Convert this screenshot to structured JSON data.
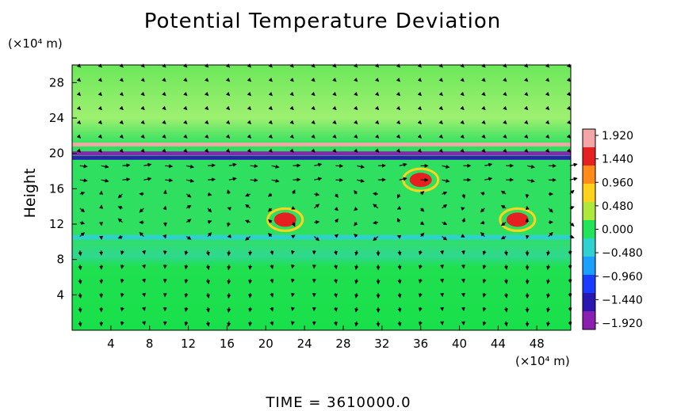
{
  "chart_data": {
    "type": "heatmap",
    "title": "Potential Temperature Deviation",
    "ylabel": "Height",
    "y_unit_label": "(×10⁴ m)",
    "x_unit_label": "(×10⁴ m)",
    "xlim": [
      0,
      51.5
    ],
    "ylim": [
      0,
      30
    ],
    "x_ticks": [
      4,
      8,
      12,
      16,
      20,
      24,
      28,
      32,
      36,
      40,
      44,
      48
    ],
    "y_ticks": [
      4,
      8,
      12,
      16,
      20,
      24,
      28
    ],
    "colorbar": {
      "ticks": [
        "1.920",
        "1.440",
        "0.960",
        "0.480",
        "0.000",
        "−0.480",
        "−0.960",
        "−1.440",
        "−1.920"
      ],
      "values": [
        1.92,
        1.44,
        0.96,
        0.48,
        0.0,
        -0.48,
        -0.96,
        -1.44,
        -1.92
      ],
      "colors_top_to_bottom": [
        "#f4a6a6",
        "#e62020",
        "#ff8c1a",
        "#ffd21e",
        "#aee83c",
        "#22e35a",
        "#2fd1d1",
        "#1aa0ff",
        "#1a3cff",
        "#2a16b0",
        "#8a1fb0"
      ]
    },
    "background_value_color": "#36e85a",
    "features": [
      {
        "label": "warm band",
        "y": 21,
        "x_range": [
          0,
          51.5
        ],
        "value": 1.9
      },
      {
        "label": "cold band",
        "y": 20,
        "x_range": [
          0,
          51.5
        ],
        "value": -1.9
      },
      {
        "label": "cold band",
        "y": 19.5,
        "x_range": [
          0,
          51.5
        ],
        "value": -1.4
      },
      {
        "label": "warm anomaly",
        "x": 36,
        "y": 17,
        "value": 1.6
      },
      {
        "label": "warm anomaly",
        "x": 22,
        "y": 12.5,
        "value": 1.5
      },
      {
        "label": "warm anomaly",
        "x": 46,
        "y": 12.5,
        "value": 1.7
      },
      {
        "label": "cool layer",
        "y": 10.5,
        "x_range": [
          0,
          51.5
        ],
        "value": -0.5
      }
    ],
    "vector_field": "wind arrows overlay on a regular grid"
  },
  "time_label": "TIME  =  3610000.0"
}
